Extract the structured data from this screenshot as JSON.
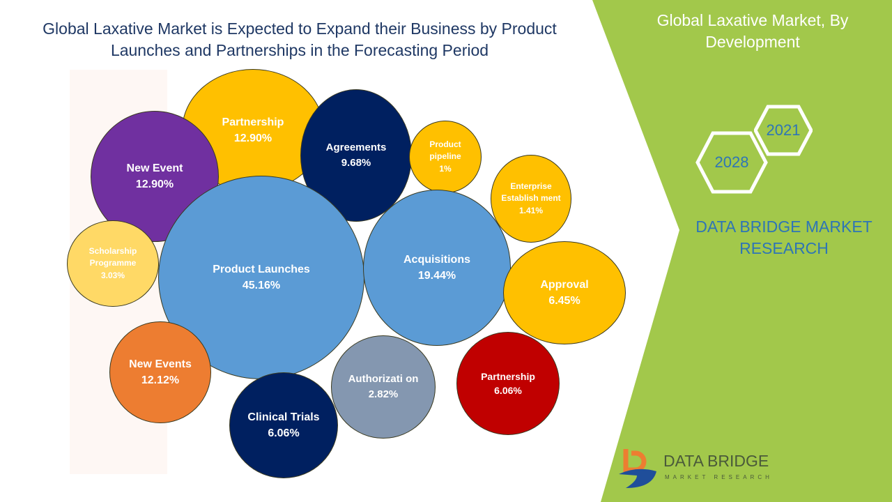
{
  "header": {
    "title": "Global Laxative Market is Expected to Expand their Business by Product Launches and Partnerships in the Forecasting Period"
  },
  "panel": {
    "title": "Global Laxative Market, By Development",
    "year_start": "2021",
    "year_end": "2028",
    "brand": "DATA BRIDGE MARKET RESEARCH"
  },
  "logo": {
    "name": "DATA BRIDGE",
    "tagline": "MARKET RESEARCH"
  },
  "chart_data": {
    "type": "bubble",
    "title": "Global Laxative Market is Expected to Expand their Business by Product Launches and Partnerships in the Forecasting Period",
    "bubbles": [
      {
        "label": "Partnership",
        "value": "12.90%",
        "color": "#FFC000"
      },
      {
        "label": "Agreements",
        "value": "9.68%",
        "color": "#002060"
      },
      {
        "label": "New Event",
        "value": "12.90%",
        "color": "#7030A0"
      },
      {
        "label": "Product pipeline",
        "value": "1%",
        "color": "#FFC000"
      },
      {
        "label": "Enterprise Establish ment",
        "value": "1.41%",
        "color": "#FFC000"
      },
      {
        "label": "Scholarship Programme",
        "value": "3.03%",
        "color": "#FFD966"
      },
      {
        "label": "Product Launches",
        "value": "45.16%",
        "color": "#5B9BD5"
      },
      {
        "label": "Acquisitions",
        "value": "19.44%",
        "color": "#5B9BD5"
      },
      {
        "label": "Approval",
        "value": "6.45%",
        "color": "#FFC000"
      },
      {
        "label": "New Events",
        "value": "12.12%",
        "color": "#ED7D31"
      },
      {
        "label": "Clinical Trials",
        "value": "6.06%",
        "color": "#002060"
      },
      {
        "label": "Authorizati on",
        "value": "2.82%",
        "color": "#8497B0"
      },
      {
        "label": "Partnership",
        "value": "6.06%",
        "color": "#C00000"
      }
    ]
  }
}
